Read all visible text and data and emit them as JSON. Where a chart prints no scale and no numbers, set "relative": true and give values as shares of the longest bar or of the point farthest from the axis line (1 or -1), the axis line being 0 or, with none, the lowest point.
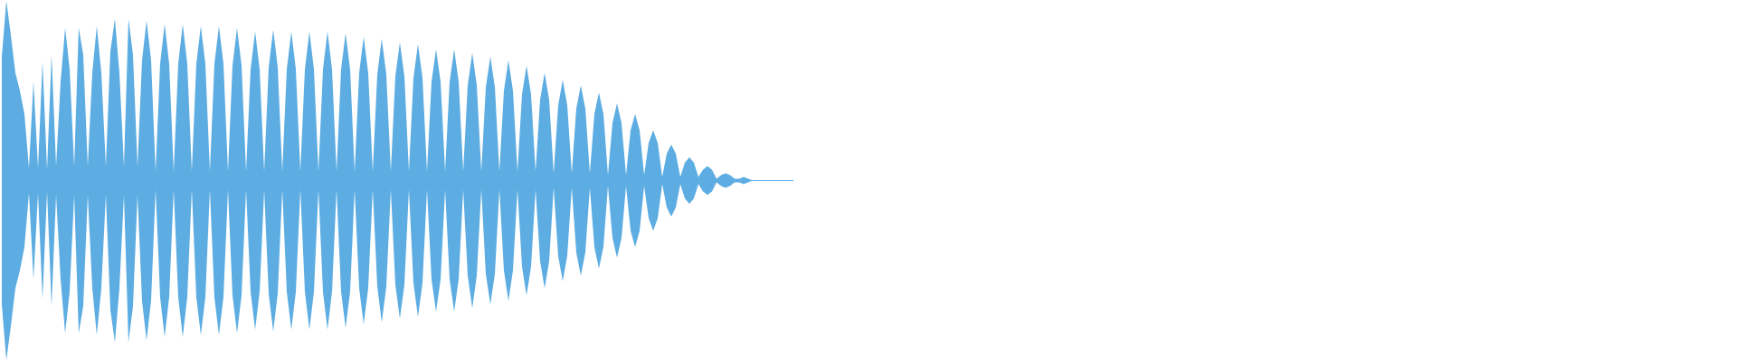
{
  "chart_data": {
    "type": "area",
    "relative": true,
    "categories": [
      null,
      null,
      null,
      null,
      null,
      null,
      null,
      null,
      null,
      null,
      null,
      null,
      null,
      null,
      null,
      null,
      null,
      null,
      null,
      null,
      null,
      null,
      null,
      null,
      null,
      null,
      null,
      null,
      null,
      null,
      null,
      null,
      null,
      null,
      null,
      null,
      null,
      null,
      null,
      null,
      null,
      null,
      null,
      null,
      null,
      null,
      null,
      null,
      null,
      null,
      null,
      null,
      null,
      null,
      null,
      null,
      null,
      null,
      null,
      null,
      null,
      null,
      null,
      null,
      null,
      null,
      null,
      null,
      null,
      null,
      null,
      null,
      null,
      null,
      null,
      null,
      null,
      null,
      null,
      null,
      null,
      null,
      null,
      null,
      null,
      null,
      null,
      null,
      null,
      null,
      null,
      null,
      null,
      null,
      null,
      null,
      null,
      null,
      null,
      null,
      null,
      null,
      null,
      null,
      null,
      null,
      null,
      null,
      null,
      null,
      null,
      null,
      null,
      null,
      null,
      null,
      null,
      null,
      null,
      null,
      null,
      null,
      null,
      null,
      null,
      null,
      null,
      null,
      null,
      null,
      null,
      null,
      null,
      null,
      null,
      null,
      null,
      null,
      null,
      null,
      null,
      null,
      null,
      null,
      null,
      null,
      null,
      null,
      null,
      null,
      null,
      null,
      null,
      null,
      null,
      null,
      null,
      null,
      null,
      null,
      null,
      null,
      null,
      null,
      null,
      null,
      null,
      null,
      null,
      null,
      null,
      null,
      null,
      null,
      null,
      null
    ],
    "series": [
      {
        "color": "#5dade2",
        "values": [
          0.69,
          1,
          0.81,
          0.6,
          0.5,
          0.37,
          0.07,
          0.55,
          0.07,
          0.66,
          0.06,
          0.7,
          0.08,
          0.55,
          0.85,
          0.62,
          0.08,
          0.85,
          0.7,
          0.08,
          0.6,
          0.86,
          0.6,
          0.08,
          0.72,
          0.9,
          0.6,
          0.08,
          0.9,
          0.7,
          0.08,
          0.67,
          0.89,
          0.67,
          0.05,
          0.65,
          0.87,
          0.65,
          0.05,
          0.65,
          0.87,
          0.65,
          0.05,
          0.65,
          0.86,
          0.65,
          0.05,
          0.65,
          0.86,
          0.65,
          0.05,
          0.64,
          0.85,
          0.64,
          0.05,
          0.62,
          0.83,
          0.62,
          0.05,
          0.63,
          0.84,
          0.63,
          0.05,
          0.62,
          0.83,
          0.62,
          0.05,
          0.62,
          0.83,
          0.62,
          0.05,
          0.62,
          0.83,
          0.62,
          0.05,
          0.62,
          0.82,
          0.62,
          0.05,
          0.6,
          0.8,
          0.6,
          0.05,
          0.59,
          0.79,
          0.59,
          0.05,
          0.58,
          0.77,
          0.58,
          0.05,
          0.57,
          0.76,
          0.57,
          0.05,
          0.55,
          0.73,
          0.55,
          0.05,
          0.55,
          0.73,
          0.55,
          0.05,
          0.53,
          0.71,
          0.53,
          0.05,
          0.52,
          0.69,
          0.52,
          0.05,
          0.5,
          0.67,
          0.5,
          0.05,
          0.48,
          0.64,
          0.48,
          0.05,
          0.45,
          0.6,
          0.45,
          0.04,
          0.42,
          0.56,
          0.42,
          0.04,
          0.4,
          0.53,
          0.4,
          0.04,
          0.37,
          0.49,
          0.37,
          0.03,
          0.32,
          0.43,
          0.32,
          0.03,
          0.28,
          0.37,
          0.28,
          0.03,
          0.21,
          0.28,
          0.21,
          0.02,
          0.15,
          0.2,
          0.15,
          0.02,
          0.1,
          0.13,
          0.1,
          0.02,
          0.06,
          0.08,
          0.06,
          0.01,
          0.03,
          0.04,
          0.03,
          0.01,
          0.01,
          0.02,
          0.01,
          0,
          0,
          0,
          0,
          0,
          0,
          0,
          0,
          0,
          0
        ]
      },
      {
        "color": "#5dade2",
        "values": [
          -0.69,
          -1,
          -0.81,
          -0.6,
          -0.5,
          -0.37,
          -0.07,
          -0.55,
          -0.07,
          -0.66,
          -0.06,
          -0.7,
          -0.08,
          -0.55,
          -0.85,
          -0.62,
          -0.08,
          -0.85,
          -0.7,
          -0.08,
          -0.6,
          -0.86,
          -0.6,
          -0.08,
          -0.72,
          -0.9,
          -0.6,
          -0.08,
          -0.9,
          -0.7,
          -0.08,
          -0.67,
          -0.89,
          -0.67,
          -0.05,
          -0.65,
          -0.87,
          -0.65,
          -0.05,
          -0.65,
          -0.87,
          -0.65,
          -0.05,
          -0.65,
          -0.86,
          -0.65,
          -0.05,
          -0.65,
          -0.86,
          -0.65,
          -0.05,
          -0.64,
          -0.85,
          -0.64,
          -0.05,
          -0.62,
          -0.83,
          -0.62,
          -0.05,
          -0.63,
          -0.84,
          -0.63,
          -0.05,
          -0.62,
          -0.83,
          -0.62,
          -0.05,
          -0.62,
          -0.83,
          -0.62,
          -0.05,
          -0.62,
          -0.83,
          -0.62,
          -0.05,
          -0.62,
          -0.82,
          -0.62,
          -0.05,
          -0.6,
          -0.8,
          -0.6,
          -0.05,
          -0.59,
          -0.79,
          -0.59,
          -0.05,
          -0.58,
          -0.77,
          -0.58,
          -0.05,
          -0.57,
          -0.76,
          -0.57,
          -0.05,
          -0.55,
          -0.73,
          -0.55,
          -0.05,
          -0.55,
          -0.73,
          -0.55,
          -0.05,
          -0.53,
          -0.71,
          -0.53,
          -0.05,
          -0.52,
          -0.69,
          -0.52,
          -0.05,
          -0.5,
          -0.67,
          -0.5,
          -0.05,
          -0.48,
          -0.64,
          -0.48,
          -0.05,
          -0.45,
          -0.6,
          -0.45,
          -0.04,
          -0.42,
          -0.56,
          -0.42,
          -0.04,
          -0.4,
          -0.53,
          -0.4,
          -0.04,
          -0.37,
          -0.49,
          -0.37,
          -0.03,
          -0.32,
          -0.43,
          -0.32,
          -0.03,
          -0.28,
          -0.37,
          -0.28,
          -0.03,
          -0.21,
          -0.28,
          -0.21,
          -0.02,
          -0.15,
          -0.2,
          -0.15,
          -0.02,
          -0.1,
          -0.13,
          -0.1,
          -0.02,
          -0.06,
          -0.08,
          -0.06,
          -0.01,
          -0.03,
          -0.04,
          -0.03,
          -0.01,
          -0.01,
          -0.02,
          -0.01,
          0,
          0,
          0,
          0,
          0,
          0,
          0,
          0,
          0,
          0
        ]
      }
    ],
    "ref_lines": [
      {
        "axis": "y",
        "value": 0,
        "color": "#5dade2"
      }
    ]
  }
}
